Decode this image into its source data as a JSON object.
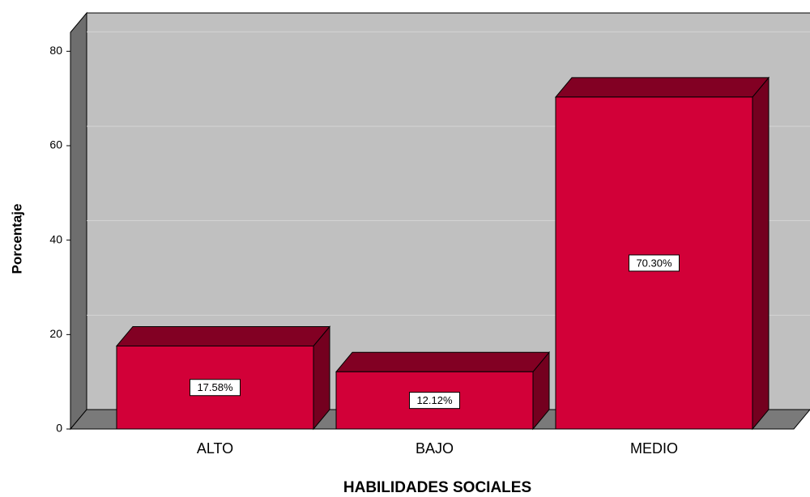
{
  "chart_data": {
    "type": "bar3d",
    "x_label": "HABILIDADES SOCIALES",
    "y_label": "Porcentaje",
    "categories": [
      "ALTO",
      "BAJO",
      "MEDIO"
    ],
    "values": [
      17.58,
      12.12,
      70.3
    ],
    "value_labels": [
      "17.58%",
      "12.12%",
      "70.30%"
    ],
    "color": "#d20038",
    "ylim": [
      0,
      84
    ],
    "yticks": [
      0,
      20,
      40,
      60,
      80
    ],
    "grid": true
  }
}
